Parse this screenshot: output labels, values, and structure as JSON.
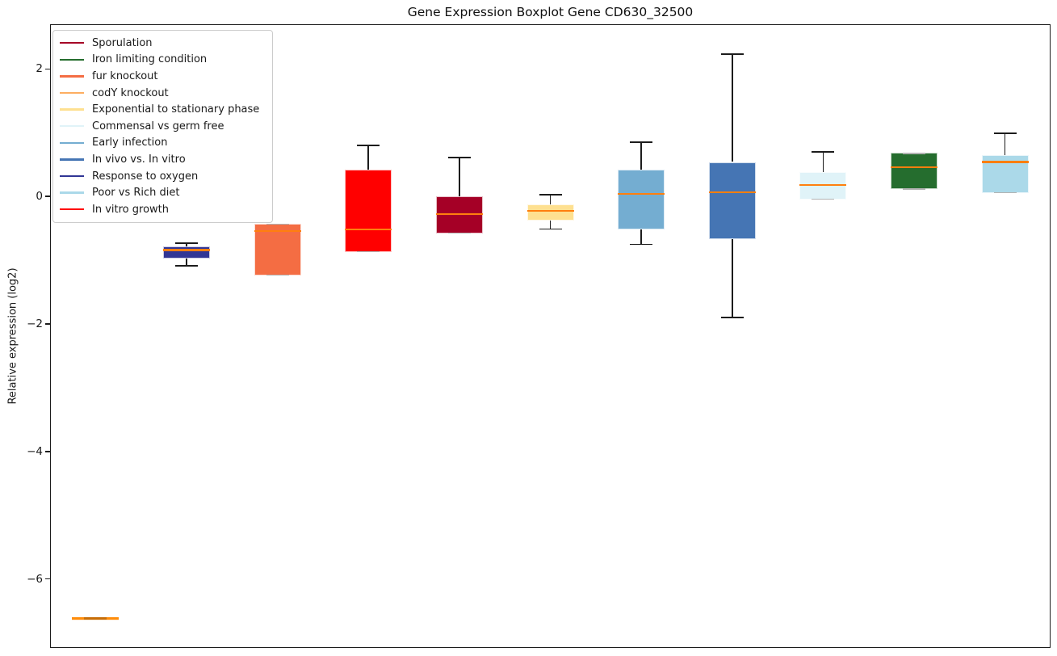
{
  "figure": {
    "background": "#ffffff"
  },
  "chart_data": {
    "type": "boxplot",
    "title": "Gene Expression Boxplot Gene CD630_32500",
    "ylabel": "Relative expression (log2)",
    "xlabel": "",
    "yticks": [
      2,
      0,
      -2,
      -4,
      -6
    ],
    "ylim": [
      -7.08,
      2.7
    ],
    "grid": false,
    "legend_position": "upper-left",
    "colors": {
      "median_line": "#ff7f0e",
      "whisker_line": "#1c1c1c",
      "cap_on_edge": "#b3b3b3",
      "flat_median": "#ff8c0a",
      "axis": "#1c1c1c",
      "legend_border": "#cccccc"
    },
    "legend": [
      {
        "label": "Sporulation",
        "color": "#a50026"
      },
      {
        "label": "Iron limiting condition",
        "color": "#256d2e"
      },
      {
        "label": "fur knockout",
        "color": "#f46d43"
      },
      {
        "label": "codY knockout",
        "color": "#fdae61"
      },
      {
        "label": "Exponential to stationary phase",
        "color": "#fee090"
      },
      {
        "label": "Commensal vs germ free",
        "color": "#e0f3f8"
      },
      {
        "label": "Early infection",
        "color": "#74add1"
      },
      {
        "label": "In vivo vs. In vitro",
        "color": "#4575b4"
      },
      {
        "label": "Response to oxygen",
        "color": "#313695"
      },
      {
        "label": "Poor vs Rich diet",
        "color": "#abd9e9"
      },
      {
        "label": "In vitro growth",
        "color": "#ff0000"
      }
    ],
    "boxes": [
      {
        "condition": "codY knockout",
        "color": "#fdae61",
        "whislo": -6.63,
        "q1": -6.63,
        "med": -6.62,
        "q3": -6.61,
        "whishi": -6.61
      },
      {
        "condition": "Response to oxygen",
        "color": "#313695",
        "whislo": -1.09,
        "q1": -0.98,
        "med": -0.84,
        "q3": -0.79,
        "whishi": -0.73
      },
      {
        "condition": "fur knockout",
        "color": "#f46d43",
        "whislo": -1.24,
        "q1": -1.24,
        "med": -0.54,
        "q3": -0.43,
        "whishi": -0.43
      },
      {
        "condition": "In vitro growth",
        "color": "#ff0000",
        "whislo": -0.87,
        "q1": -0.87,
        "med": -0.52,
        "q3": 0.42,
        "whishi": 0.8
      },
      {
        "condition": "Sporulation",
        "color": "#a50026",
        "whislo": -0.58,
        "q1": -0.58,
        "med": -0.28,
        "q3": 0.0,
        "whishi": 0.61
      },
      {
        "condition": "Exponential to stationary phase",
        "color": "#fee090",
        "whislo": -0.51,
        "q1": -0.38,
        "med": -0.23,
        "q3": -0.13,
        "whishi": 0.03
      },
      {
        "condition": "Early infection",
        "color": "#74add1",
        "whislo": -0.75,
        "q1": -0.52,
        "med": 0.04,
        "q3": 0.42,
        "whishi": 0.85
      },
      {
        "condition": "In vivo vs. In vitro",
        "color": "#4575b4",
        "whislo": -1.9,
        "q1": -0.67,
        "med": 0.06,
        "q3": 0.54,
        "whishi": 2.23
      },
      {
        "condition": "Commensal vs germ free",
        "color": "#e0f3f8",
        "whislo": -0.05,
        "q1": -0.05,
        "med": 0.18,
        "q3": 0.38,
        "whishi": 0.7
      },
      {
        "condition": "Iron limiting condition",
        "color": "#256d2e",
        "whislo": 0.11,
        "q1": 0.11,
        "med": 0.46,
        "q3": 0.68,
        "whishi": 0.68
      },
      {
        "condition": "Poor vs Rich diet",
        "color": "#abd9e9",
        "whislo": 0.05,
        "q1": 0.05,
        "med": 0.54,
        "q3": 0.65,
        "whishi": 0.99
      }
    ]
  }
}
